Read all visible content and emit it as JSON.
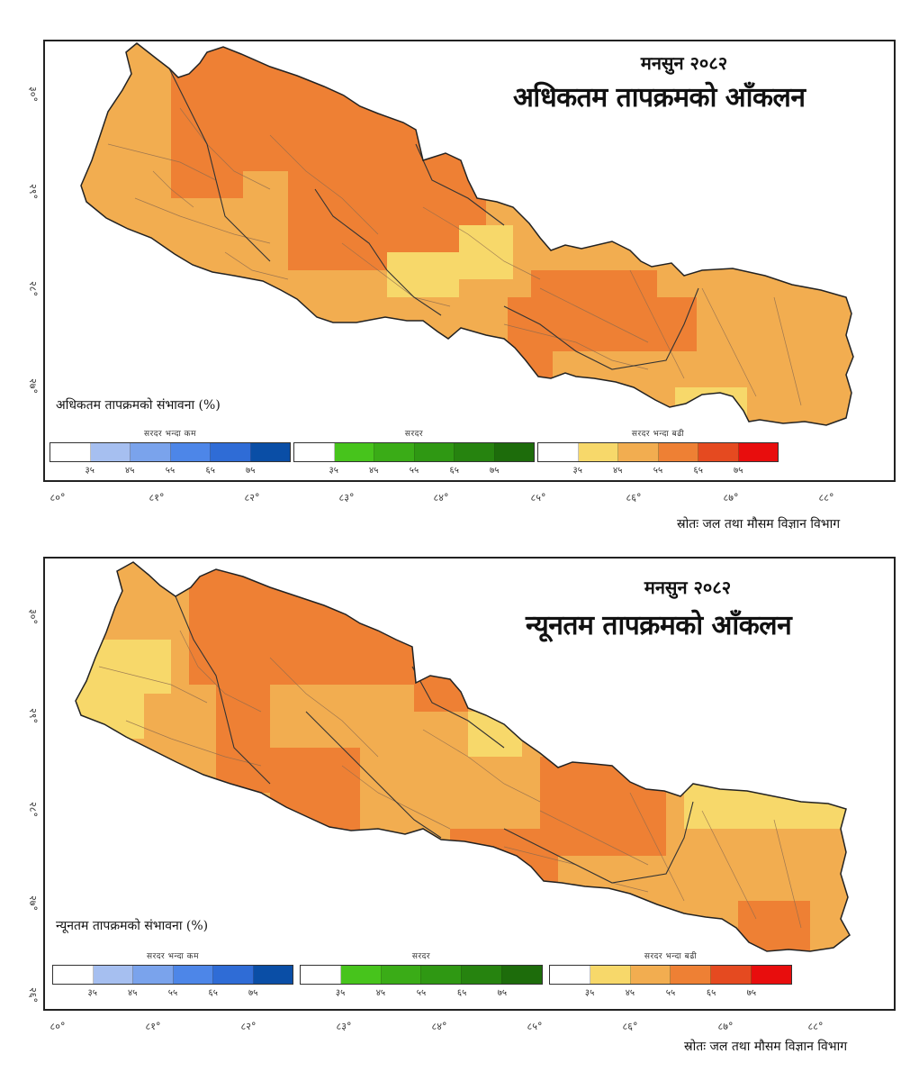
{
  "palette": {
    "blue": [
      "#ffffff",
      "#a6bff0",
      "#7aa3ec",
      "#4d86e8",
      "#2f6cd6",
      "#0a4ea6"
    ],
    "green": [
      "#ffffff",
      "#47c41c",
      "#3aac17",
      "#2f9813",
      "#26830f",
      "#1d6c0b"
    ],
    "orange": [
      "#ffffff",
      "#f7d86a",
      "#f2ad50",
      "#ee8034",
      "#e54a20",
      "#e80d0d"
    ]
  },
  "panels": [
    {
      "title_small": "मनसुन २०८२",
      "title_big": "अधिकतम तापक्रमको आँकलन",
      "prob_label": "अधिकतम तापक्रमको संभावना (%)",
      "legend": {
        "below": "सरदर भन्दा कम",
        "normal": "सरदर",
        "above": "सरदर भन्दा बढी",
        "ticks": [
          "३५",
          "४५",
          "५५",
          "६५",
          "७५"
        ]
      },
      "lon_ticks": [
        "८०°",
        "८१°",
        "८२°",
        "८३°",
        "८४°",
        "८५°",
        "८६°",
        "८७°",
        "८८°"
      ],
      "lat_ticks": [
        "३०°",
        "२९°",
        "२८°",
        "२७°"
      ],
      "source": "स्रोतः जल तथा मौसम विज्ञान विभाग",
      "regions": [
        {
          "name": "far-west-hills",
          "category": "above",
          "level": 2
        },
        {
          "name": "karnali-north",
          "category": "above",
          "level": 3
        },
        {
          "name": "central-hills",
          "category": "above",
          "level": 2
        },
        {
          "name": "manang-mustang",
          "category": "above",
          "level": 3
        },
        {
          "name": "gandaki-south",
          "category": "above",
          "level": 1
        },
        {
          "name": "koshi-west",
          "category": "above",
          "level": 3
        },
        {
          "name": "koshi-east",
          "category": "above",
          "level": 2
        },
        {
          "name": "jhapa",
          "category": "above",
          "level": 1
        }
      ]
    },
    {
      "title_small": "मनसुन २०८२",
      "title_big": "न्यूनतम तापक्रमको आँकलन",
      "prob_label": "न्यूनतम तापक्रमको संभावना (%)",
      "legend": {
        "below": "सरदर भन्दा कम",
        "normal": "सरदर",
        "above": "सरदर भन्दा बढी",
        "ticks": [
          "३५",
          "४५",
          "५५",
          "६५",
          "७५"
        ]
      },
      "lon_ticks": [
        "८०°",
        "८१°",
        "८२°",
        "८३°",
        "८४°",
        "८५°",
        "८६°",
        "८७°",
        "८८°"
      ],
      "lat_ticks": [
        "३०°",
        "२९°",
        "२८°",
        "२७°",
        "२६°"
      ],
      "source": "स्रोतः जल तथा मौसम विज्ञान विभाग",
      "regions": [
        {
          "name": "far-west",
          "category": "above",
          "level": 1
        },
        {
          "name": "karnali-west",
          "category": "above",
          "level": 3
        },
        {
          "name": "lumbini",
          "category": "above",
          "level": 3
        },
        {
          "name": "gandaki",
          "category": "above",
          "level": 2
        },
        {
          "name": "bagmati-north",
          "category": "above",
          "level": 1
        },
        {
          "name": "bagmati-east",
          "category": "above",
          "level": 3
        },
        {
          "name": "koshi-north",
          "category": "above",
          "level": 1
        },
        {
          "name": "koshi-south",
          "category": "above",
          "level": 2
        },
        {
          "name": "jhapa-morang",
          "category": "above",
          "level": 3
        }
      ]
    }
  ]
}
